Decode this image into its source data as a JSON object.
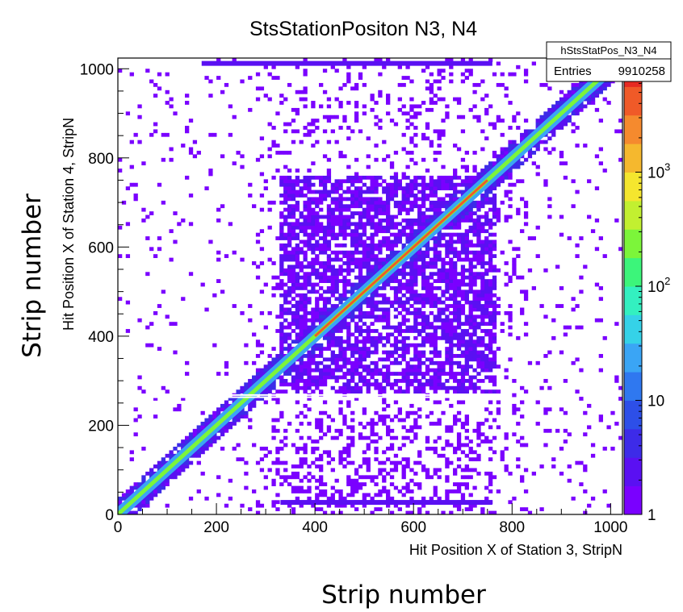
{
  "colors": {
    "background": "#ffffff",
    "frame": "#000000",
    "palette": [
      "#7a00ff",
      "#5a10f2",
      "#3d2be8",
      "#2d4fe8",
      "#2f78f0",
      "#3aa5f5",
      "#35d2e8",
      "#33f0c0",
      "#3cf57a",
      "#7cf53a",
      "#c2f030",
      "#f5e62e",
      "#f5b82e",
      "#f58a2e",
      "#f05a28",
      "#e62a22"
    ]
  },
  "chart_data": {
    "type": "heatmap",
    "title": "StsStationPositon N3, N4",
    "xlabel": "Hit Position X of Station 3, StripN",
    "ylabel": "Hit Position X of Station 4, StripN",
    "extra_xlabel": "Strip number",
    "extra_ylabel": "Strip number",
    "xlim": [
      0,
      1024
    ],
    "ylim": [
      0,
      1024
    ],
    "x_ticks": [
      0,
      200,
      400,
      600,
      800,
      1000
    ],
    "y_ticks": [
      0,
      200,
      400,
      600,
      800,
      1000
    ],
    "z_scale": "log",
    "zlim": [
      1,
      10000
    ],
    "z_ticks": [
      {
        "value": 1,
        "label": "1"
      },
      {
        "value": 10,
        "label": "10"
      },
      {
        "value": 100,
        "label": "10",
        "exp": "2"
      },
      {
        "value": 1000,
        "label": "10",
        "exp": "3"
      }
    ],
    "stats": {
      "name": "hStsStatPos_N3_N4",
      "entries_label": "Entries",
      "entries": "9910258"
    },
    "features": {
      "diagonal": {
        "x_range": [
          0,
          1024
        ],
        "peak_region": [
          400,
          750
        ]
      },
      "central_block": {
        "x_range": [
          330,
          770
        ],
        "y_range": [
          270,
          760
        ]
      },
      "gap_rows_y": [
        263,
        268
      ],
      "dense_rows_y": [
        27,
        1012
      ]
    }
  }
}
